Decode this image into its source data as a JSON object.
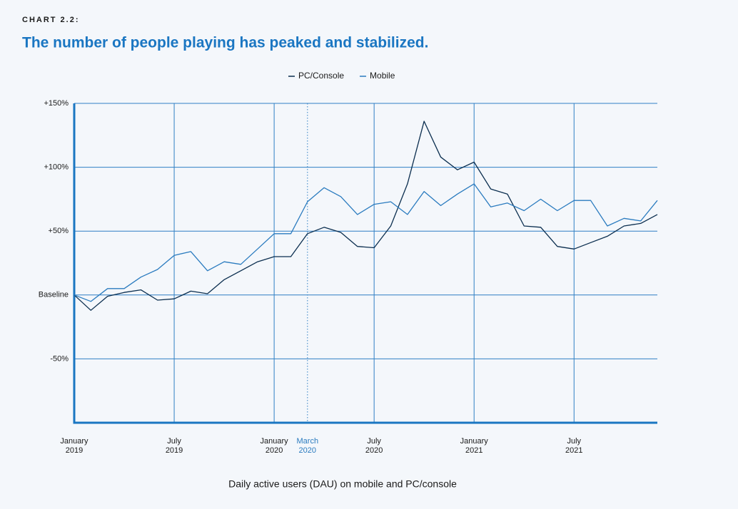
{
  "chart_data": {
    "type": "line",
    "label": "CHART 2.2:",
    "title": "The number of people playing has peaked and stabilized.",
    "caption": "Daily active users (DAU) on mobile and PC/console",
    "x": [
      "2019-01",
      "2019-02",
      "2019-03",
      "2019-04",
      "2019-05",
      "2019-06",
      "2019-07",
      "2019-08",
      "2019-09",
      "2019-10",
      "2019-11",
      "2019-12",
      "2020-01",
      "2020-02",
      "2020-03",
      "2020-04",
      "2020-05",
      "2020-06",
      "2020-07",
      "2020-08",
      "2020-09",
      "2020-10",
      "2020-11",
      "2020-12",
      "2021-01",
      "2021-02",
      "2021-03",
      "2021-04",
      "2021-05",
      "2021-06",
      "2021-07",
      "2021-08",
      "2021-09",
      "2021-10",
      "2021-11",
      "2021-12"
    ],
    "series": [
      {
        "name": "PC/Console",
        "color": "#0b2e4f",
        "values": [
          0,
          -12,
          -1,
          2,
          4,
          -4,
          -3,
          3,
          1,
          12,
          19,
          26,
          30,
          30,
          48,
          53,
          49,
          38,
          37,
          54,
          87,
          136,
          108,
          98,
          104,
          83,
          79,
          54,
          53,
          38,
          36,
          41,
          46,
          54,
          56,
          63
        ]
      },
      {
        "name": "Mobile",
        "color": "#2a7bbf",
        "values": [
          0,
          -5,
          5,
          5,
          14,
          20,
          31,
          34,
          19,
          26,
          24,
          36,
          48,
          48,
          73,
          84,
          77,
          63,
          71,
          73,
          63,
          81,
          70,
          79,
          87,
          69,
          72,
          66,
          75,
          66,
          74,
          74,
          54,
          60,
          58,
          74
        ]
      }
    ],
    "ylim": [
      -100,
      150
    ],
    "yticks": [
      {
        "value": -50,
        "label": "-50%"
      },
      {
        "value": 0,
        "label": "Baseline"
      },
      {
        "value": 50,
        "label": "+50%"
      },
      {
        "value": 100,
        "label": "+100%"
      },
      {
        "value": 150,
        "label": "+150%"
      }
    ],
    "xticks": [
      {
        "value": "2019-01",
        "label": "January 2019"
      },
      {
        "value": "2019-07",
        "label": "July 2019"
      },
      {
        "value": "2020-01",
        "label": "January 2020"
      },
      {
        "value": "2020-03",
        "label": "March 2020"
      },
      {
        "value": "2020-07",
        "label": "July 2020"
      },
      {
        "value": "2021-01",
        "label": "January 2021"
      },
      {
        "value": "2021-07",
        "label": "July 2021"
      }
    ],
    "highlight_xtick": "2020-03",
    "highlight_color": "#2a7bbf",
    "axis_color": "#1a76c2",
    "grid": true
  }
}
